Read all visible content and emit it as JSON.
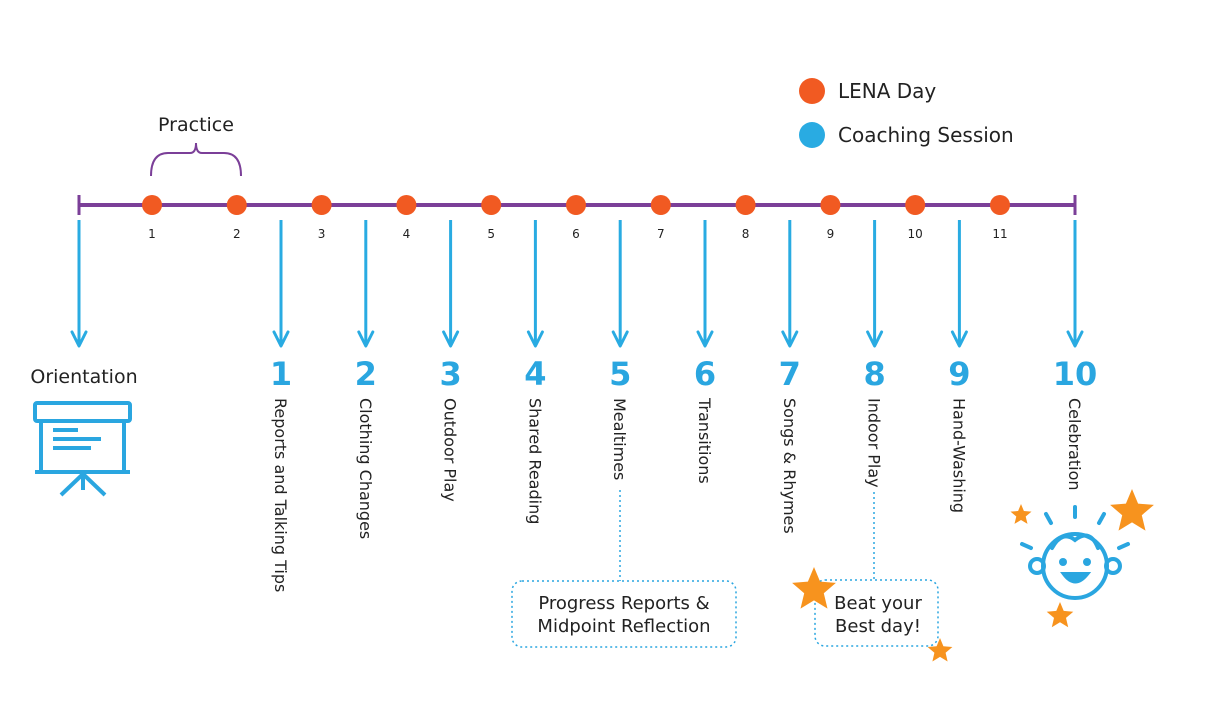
{
  "legend": {
    "items": [
      {
        "label": "LENA Day",
        "color": "#f15a22"
      },
      {
        "label": "Coaching Session",
        "color": "#29abe2"
      }
    ]
  },
  "timeline": {
    "line_color": "#7b3f98",
    "practice_label": "Practice",
    "lena_days": [
      "1",
      "2",
      "3",
      "4",
      "5",
      "6",
      "7",
      "8",
      "9",
      "10",
      "11"
    ],
    "sessions": [
      {
        "number": "1",
        "title": "Reports and Talking Tips"
      },
      {
        "number": "2",
        "title": "Clothing Changes"
      },
      {
        "number": "3",
        "title": "Outdoor Play"
      },
      {
        "number": "4",
        "title": "Shared Reading"
      },
      {
        "number": "5",
        "title": "Mealtimes"
      },
      {
        "number": "6",
        "title": "Transitions"
      },
      {
        "number": "7",
        "title": "Songs & Rhymes"
      },
      {
        "number": "8",
        "title": "Indoor Play"
      },
      {
        "number": "9",
        "title": "Hand-Washing"
      },
      {
        "number": "10",
        "title": "Celebration"
      }
    ]
  },
  "orientation": {
    "label": "Orientation",
    "icon": "presentation-board-icon"
  },
  "callouts": {
    "progress": {
      "line1": "Progress Reports &",
      "line2": "Midpoint Reflection"
    },
    "beat": {
      "line1": "Beat your",
      "line2": "Best day!"
    }
  },
  "celebration_icon": "smiling-baby-icon",
  "colors": {
    "arrow": "#29abe2",
    "dot": "#f15a22",
    "star": "#f7931e"
  }
}
